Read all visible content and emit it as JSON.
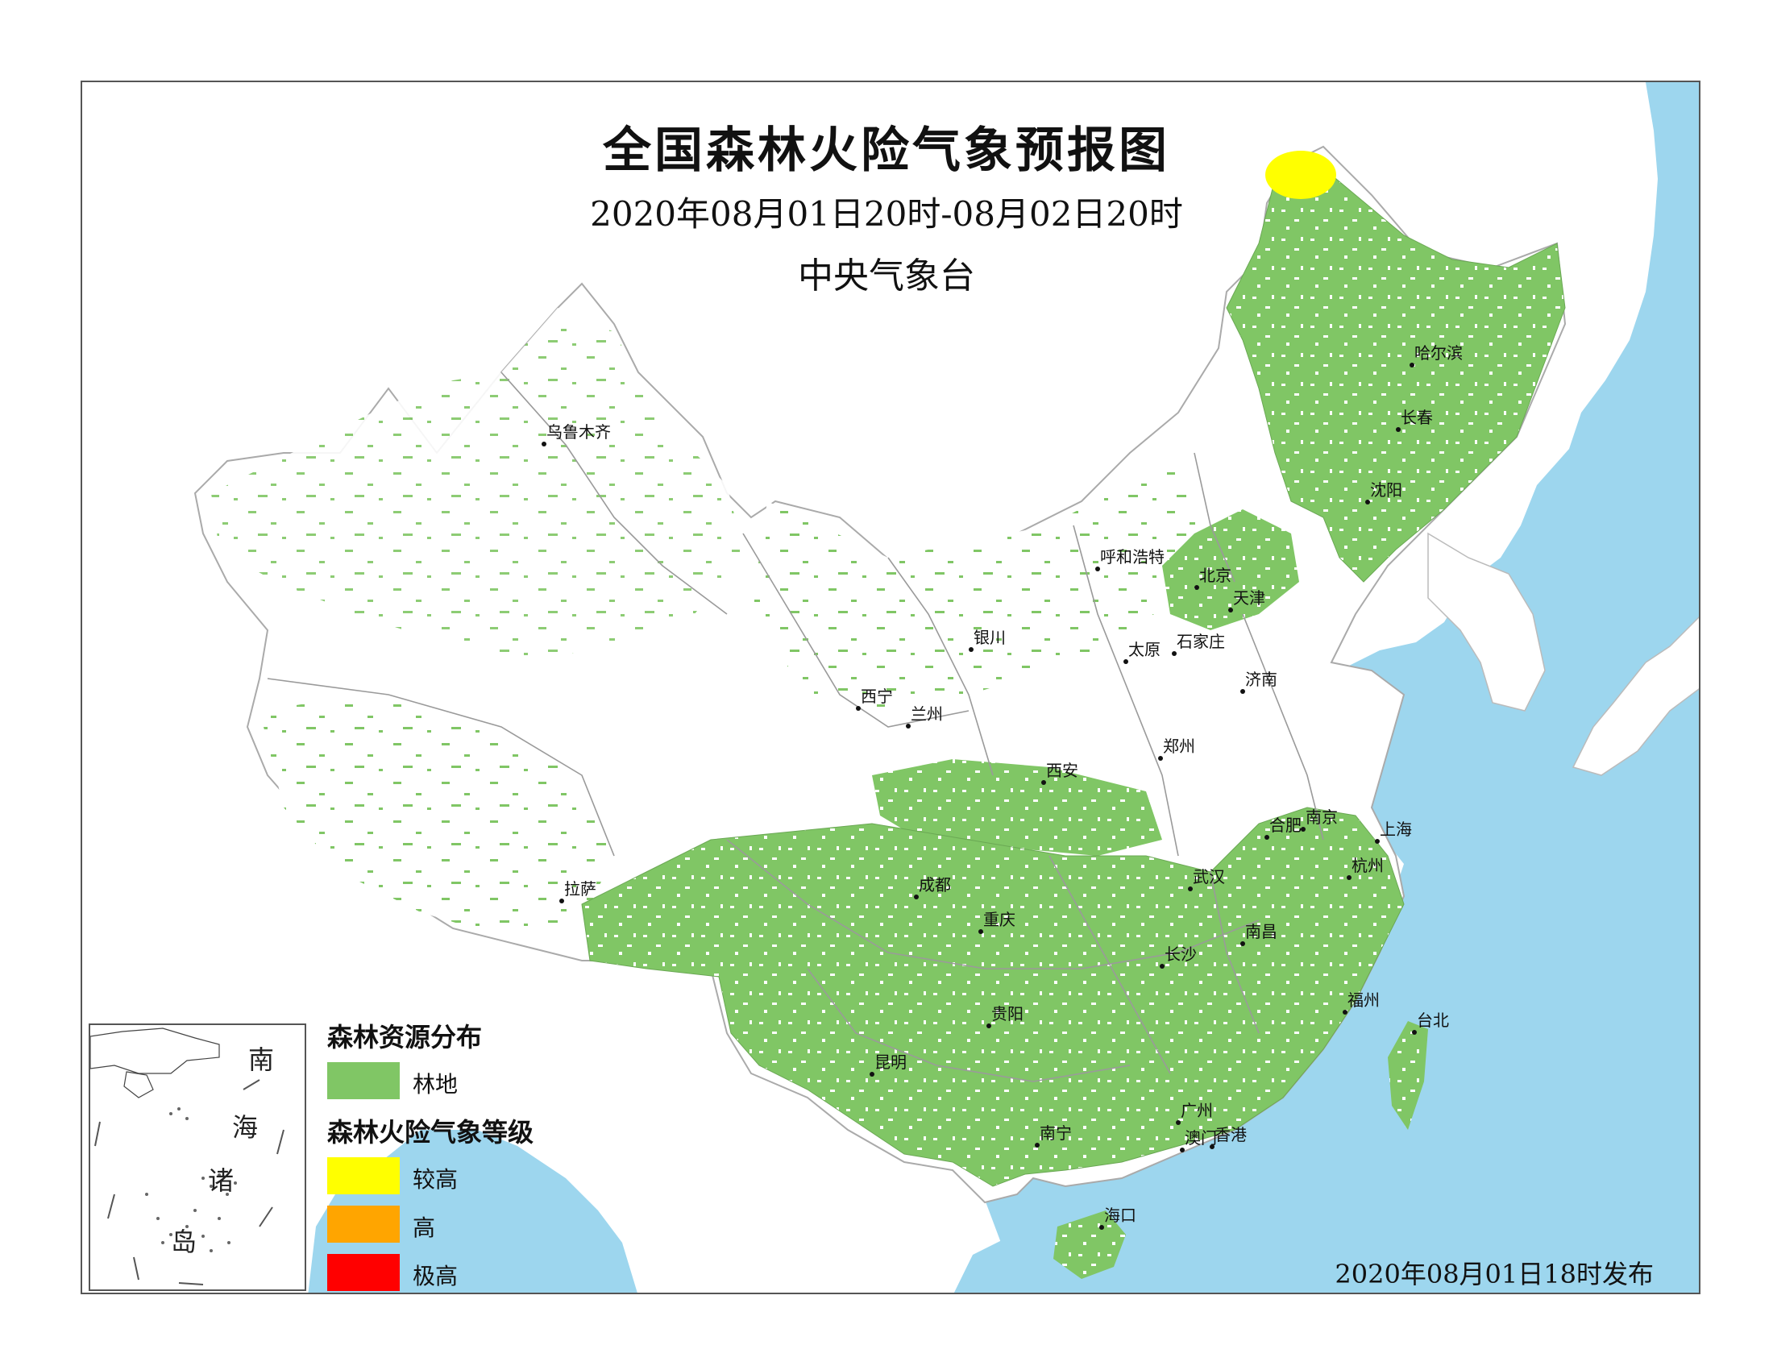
{
  "title": "全国森林火险气象预报图",
  "subtitle": "2020年08月01日20时-08月02日20时",
  "agency": "中央气象台",
  "issued": "2020年08月01日18时发布",
  "colors": {
    "forest": "#80c665",
    "sea": "#9dd6ee",
    "boundary": "#999999",
    "level_high_moderate": "#ffff00",
    "level_high": "#ffa500",
    "level_extreme": "#ff0000"
  },
  "cities": [
    {
      "name": "乌鲁木齐"
    },
    {
      "name": "哈尔滨"
    },
    {
      "name": "长春"
    },
    {
      "name": "沈阳"
    },
    {
      "name": "呼和浩特"
    },
    {
      "name": "北京"
    },
    {
      "name": "天津"
    },
    {
      "name": "银川"
    },
    {
      "name": "太原"
    },
    {
      "name": "石家庄"
    },
    {
      "name": "济南"
    },
    {
      "name": "西宁"
    },
    {
      "name": "兰州"
    },
    {
      "name": "郑州"
    },
    {
      "name": "西安"
    },
    {
      "name": "合肥"
    },
    {
      "name": "南京"
    },
    {
      "name": "上海"
    },
    {
      "name": "杭州"
    },
    {
      "name": "拉萨"
    },
    {
      "name": "成都"
    },
    {
      "name": "武汉"
    },
    {
      "name": "重庆"
    },
    {
      "name": "南昌"
    },
    {
      "name": "长沙"
    },
    {
      "name": "福州"
    },
    {
      "name": "台北"
    },
    {
      "name": "贵阳"
    },
    {
      "name": "昆明"
    },
    {
      "name": "广州"
    },
    {
      "name": "南宁"
    },
    {
      "name": "澳门"
    },
    {
      "name": "香港"
    },
    {
      "name": "海口"
    }
  ],
  "inset": {
    "chars": [
      "南",
      "海",
      "诸",
      "岛"
    ]
  },
  "legend": {
    "forest_heading": "森林资源分布",
    "forest_label": "林地",
    "risk_heading": "森林火险气象等级",
    "levels": [
      {
        "label": "较高",
        "color": "#ffff00"
      },
      {
        "label": "高",
        "color": "#ffa500"
      },
      {
        "label": "极高",
        "color": "#ff0000"
      }
    ]
  }
}
